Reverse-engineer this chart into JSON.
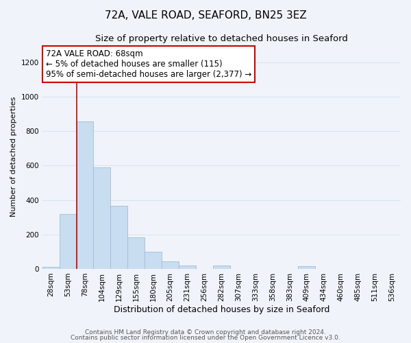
{
  "title1": "72A, VALE ROAD, SEAFORD, BN25 3EZ",
  "title2": "Size of property relative to detached houses in Seaford",
  "xlabel": "Distribution of detached houses by size in Seaford",
  "ylabel": "Number of detached properties",
  "bar_color": "#c8ddf0",
  "bar_edge_color": "#a0bcd8",
  "categories": [
    "28sqm",
    "53sqm",
    "78sqm",
    "104sqm",
    "129sqm",
    "155sqm",
    "180sqm",
    "205sqm",
    "231sqm",
    "256sqm",
    "282sqm",
    "307sqm",
    "333sqm",
    "358sqm",
    "383sqm",
    "409sqm",
    "434sqm",
    "460sqm",
    "485sqm",
    "511sqm",
    "536sqm"
  ],
  "values": [
    10,
    320,
    855,
    590,
    365,
    185,
    100,
    45,
    20,
    0,
    20,
    0,
    0,
    0,
    0,
    15,
    0,
    0,
    0,
    0,
    0
  ],
  "ylim": [
    0,
    1300
  ],
  "yticks": [
    0,
    200,
    400,
    600,
    800,
    1000,
    1200
  ],
  "marker_color": "#cc0000",
  "annotation_title": "72A VALE ROAD: 68sqm",
  "annotation_line1": "← 5% of detached houses are smaller (115)",
  "annotation_line2": "95% of semi-detached houses are larger (2,377) →",
  "footer1": "Contains HM Land Registry data © Crown copyright and database right 2024.",
  "footer2": "Contains public sector information licensed under the Open Government Licence v3.0.",
  "background_color": "#f0f4fa",
  "grid_color": "#d8e4f0",
  "annotation_box_color": "#ffffff",
  "annotation_box_edge_color": "#cc0000",
  "title1_fontsize": 11,
  "title2_fontsize": 9.5,
  "xlabel_fontsize": 9,
  "ylabel_fontsize": 8,
  "tick_fontsize": 7.5,
  "annotation_fontsize": 8.5,
  "footer_fontsize": 6.5
}
